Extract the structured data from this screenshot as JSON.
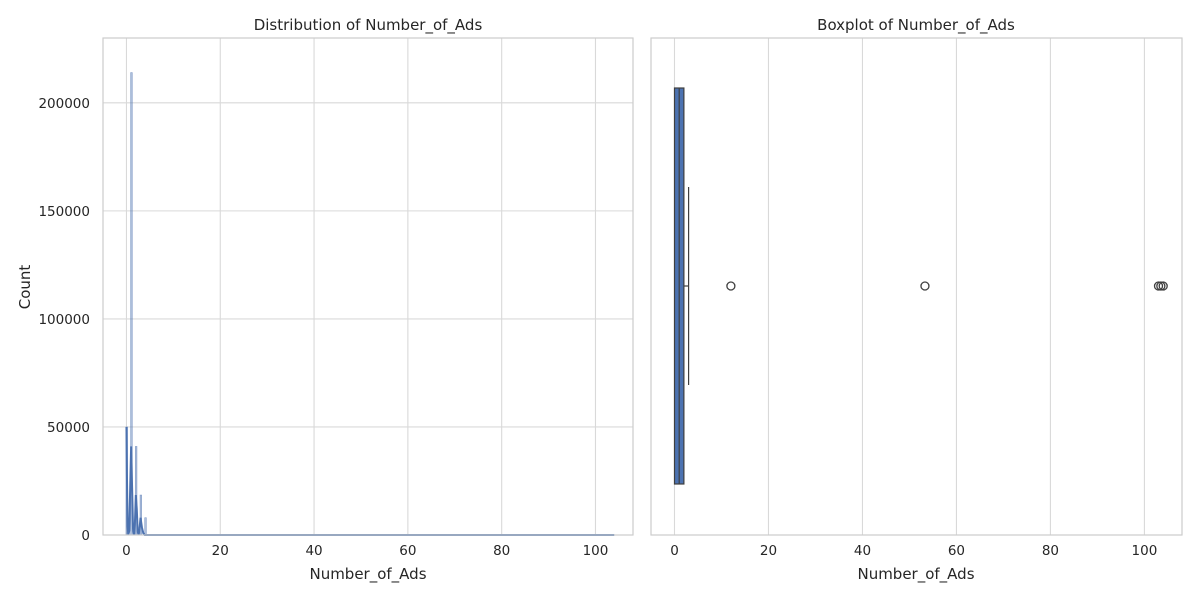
{
  "chart_data": [
    {
      "type": "bar",
      "subtype": "histogram-with-kde",
      "title": "Distribution of Number_of_Ads",
      "xlabel": "Number_of_Ads",
      "ylabel": "Count",
      "xlim": [
        -5,
        108
      ],
      "ylim": [
        0,
        230000
      ],
      "xticks": [
        0,
        20,
        40,
        60,
        80,
        100
      ],
      "yticks": [
        0,
        50000,
        100000,
        150000,
        200000
      ],
      "grid": true,
      "bar_color": "#4c72b0",
      "bins": [
        {
          "x": 0.0,
          "value": 50000
        },
        {
          "x": 1.0,
          "value": 214000
        },
        {
          "x": 2.0,
          "value": 41000
        },
        {
          "x": 3.0,
          "value": 18500
        },
        {
          "x": 4.0,
          "value": 8000
        }
      ],
      "kde": [
        [
          0.0,
          50000
        ],
        [
          0.1,
          28000
        ],
        [
          0.25,
          4000
        ],
        [
          0.4,
          0
        ],
        [
          0.6,
          2000
        ],
        [
          0.8,
          22000
        ],
        [
          1.0,
          41000
        ],
        [
          1.2,
          22000
        ],
        [
          1.4,
          3000
        ],
        [
          1.6,
          0
        ],
        [
          1.8,
          5000
        ],
        [
          2.0,
          18500
        ],
        [
          2.2,
          12000
        ],
        [
          2.4,
          1500
        ],
        [
          2.6,
          0
        ],
        [
          2.8,
          3000
        ],
        [
          3.0,
          8000
        ],
        [
          3.3,
          3500
        ],
        [
          3.6,
          800
        ],
        [
          3.9,
          0
        ],
        [
          10,
          0
        ],
        [
          104,
          0
        ]
      ]
    },
    {
      "type": "boxplot",
      "title": "Boxplot of Number_of_Ads",
      "xlabel": "Number_of_Ads",
      "xlim": [
        -5,
        108
      ],
      "xticks": [
        0,
        20,
        40,
        60,
        80,
        100
      ],
      "grid": true,
      "box_color": "#4c72b0",
      "box": {
        "q1": 0,
        "median": 1,
        "q3": 2,
        "whisker_low": 0,
        "whisker_high": 3
      },
      "outliers": [
        12,
        53.3,
        103,
        103.5,
        104
      ]
    }
  ]
}
